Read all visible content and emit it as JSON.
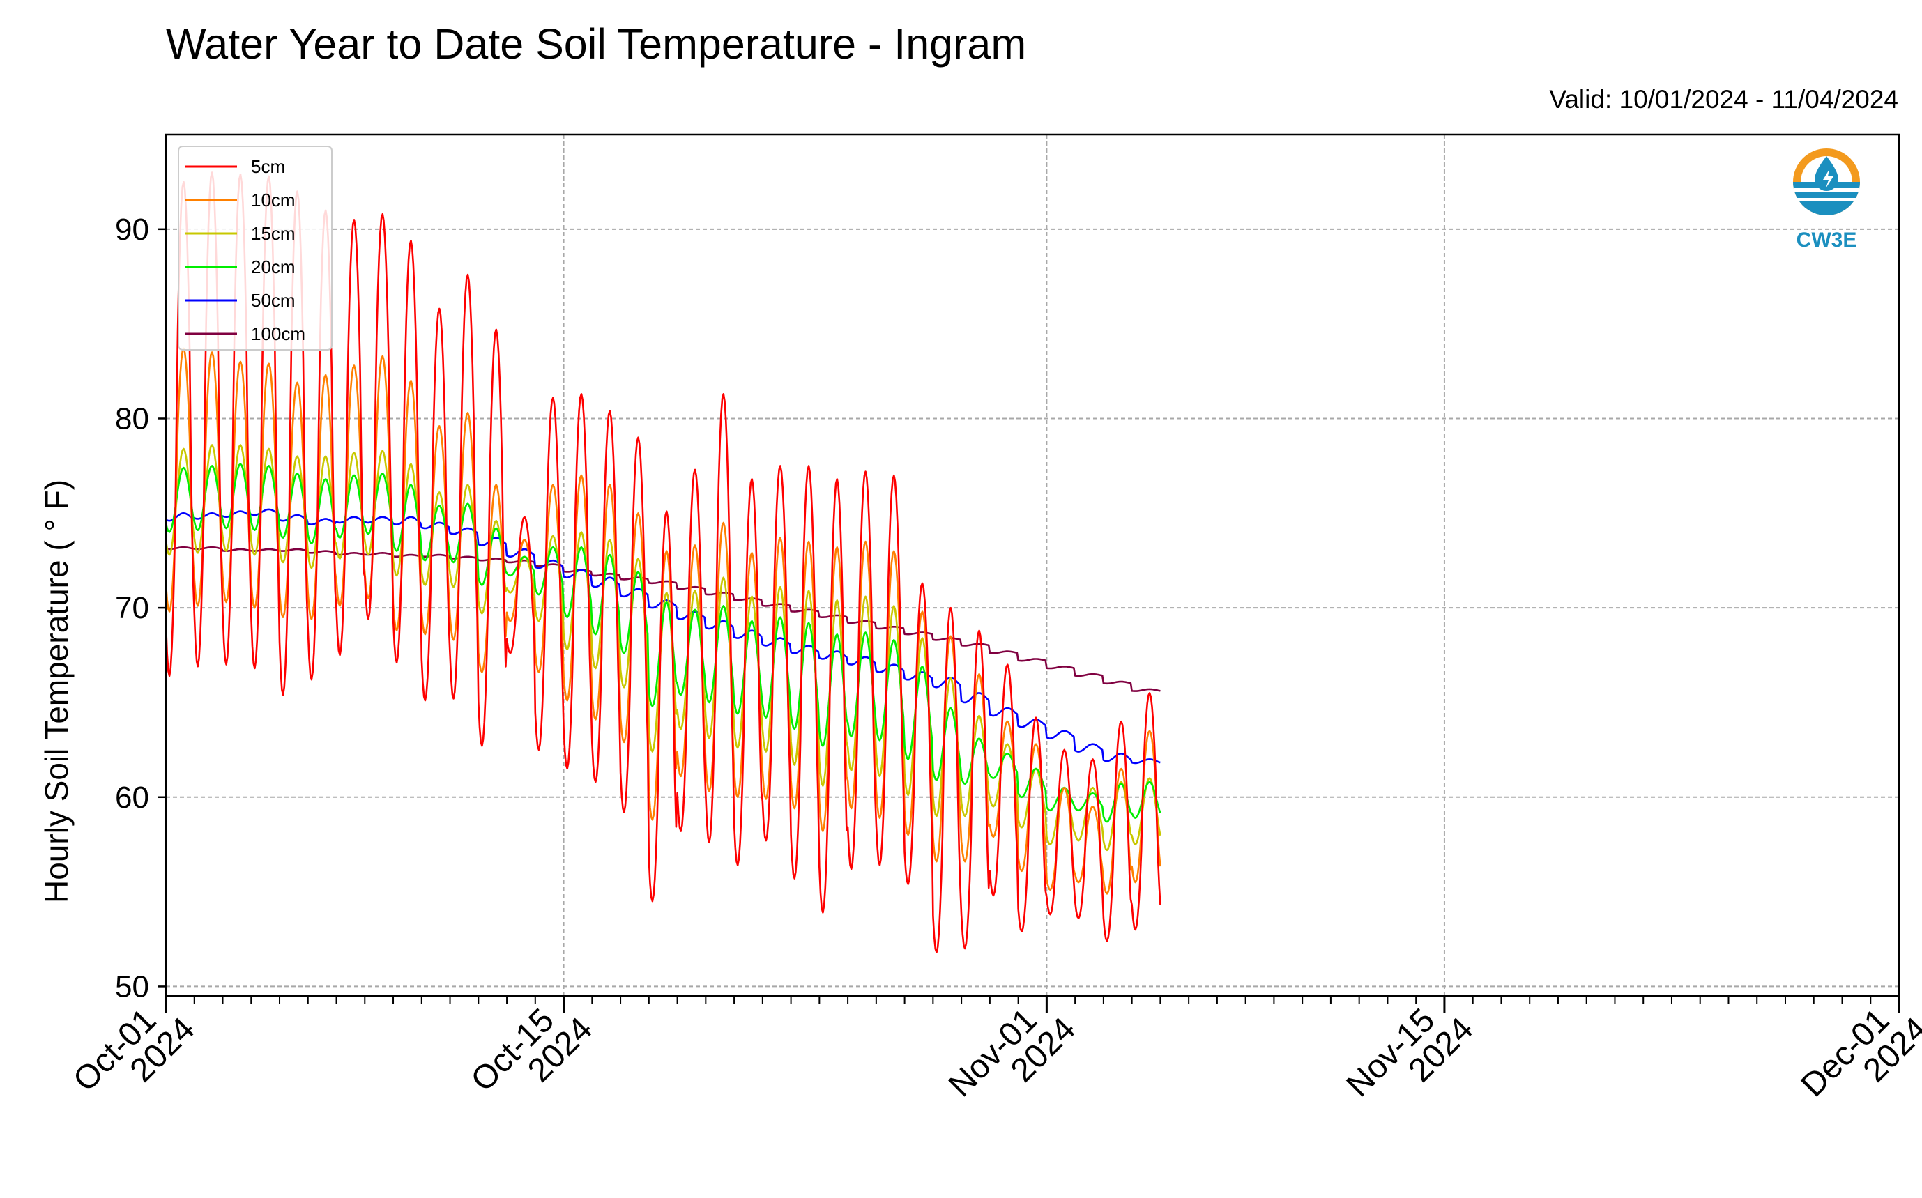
{
  "chart_data": {
    "type": "line",
    "title": "Water Year to Date Soil Temperature - Ingram",
    "subtitle": "Valid: 10/01/2024 - 11/04/2024",
    "ylabel": "Hourly Soil Temperature ( ° F)",
    "xlabel": "",
    "ylim": [
      49.5,
      95
    ],
    "xlim": [
      "2024-10-01",
      "2024-12-01"
    ],
    "yticks": [
      50,
      60,
      70,
      80,
      90
    ],
    "xticks": [
      {
        "date": "2024-10-01",
        "label_line1": "Oct-01",
        "label_line2": "2024"
      },
      {
        "date": "2024-10-15",
        "label_line1": "Oct-15",
        "label_line2": "2024"
      },
      {
        "date": "2024-11-01",
        "label_line1": "Nov-01",
        "label_line2": "2024"
      },
      {
        "date": "2024-11-15",
        "label_line1": "Nov-15",
        "label_line2": "2024"
      },
      {
        "date": "2024-12-01",
        "label_line1": "Dec-01",
        "label_line2": "2024"
      }
    ],
    "grid": true,
    "legend_position": "top-left",
    "series": [
      {
        "name": "5cm",
        "color": "#ff0000",
        "daily_max": [
          92.5,
          93.0,
          92.9,
          92.8,
          92.0,
          91.0,
          90.5,
          90.8,
          89.4,
          85.8,
          87.6,
          84.7,
          74.8,
          81.1,
          81.3,
          80.4,
          79.0,
          75.1,
          77.3,
          81.3,
          76.8,
          77.5,
          77.5,
          76.8,
          77.2,
          77.0,
          71.3,
          70.0,
          68.8,
          67.0,
          64.2,
          62.5,
          62.0,
          64.0,
          65.5
        ],
        "daily_min": [
          66.4,
          66.9,
          67.0,
          66.8,
          65.4,
          66.2,
          67.5,
          69.4,
          67.1,
          65.1,
          65.2,
          62.7,
          67.6,
          62.5,
          61.5,
          60.8,
          59.2,
          54.5,
          58.2,
          57.6,
          56.4,
          57.7,
          55.7,
          53.9,
          56.2,
          56.4,
          55.4,
          51.8,
          52.0,
          54.8,
          52.9,
          53.8,
          53.6,
          52.4,
          53.0
        ]
      },
      {
        "name": "10cm",
        "color": "#ff8000",
        "daily_max": [
          83.7,
          83.5,
          83.0,
          82.9,
          81.9,
          82.3,
          82.8,
          83.3,
          82.0,
          79.6,
          80.3,
          76.5,
          73.6,
          76.5,
          77.0,
          76.5,
          75.0,
          73.0,
          73.3,
          74.5,
          72.9,
          73.7,
          73.5,
          73.2,
          73.5,
          73.0,
          69.8,
          68.5,
          66.5,
          64.0,
          62.8,
          60.5,
          59.5,
          61.5,
          63.5
        ],
        "daily_min": [
          69.8,
          70.1,
          70.3,
          70.0,
          69.5,
          69.4,
          70.1,
          70.5,
          68.8,
          68.6,
          68.3,
          66.6,
          69.3,
          66.6,
          65.1,
          64.1,
          62.9,
          58.8,
          61.1,
          60.3,
          60.0,
          59.9,
          59.4,
          58.2,
          59.4,
          58.9,
          58.0,
          56.6,
          56.6,
          57.9,
          56.1,
          55.1,
          55.5,
          54.9,
          55.5
        ]
      },
      {
        "name": "15cm",
        "color": "#c8c800",
        "daily_max": [
          78.4,
          78.6,
          78.6,
          78.4,
          78.0,
          78.0,
          78.2,
          78.3,
          77.6,
          76.1,
          76.5,
          74.6,
          72.7,
          73.8,
          74.0,
          73.6,
          72.6,
          70.8,
          70.9,
          71.6,
          70.6,
          71.1,
          70.9,
          70.4,
          70.6,
          70.1,
          68.4,
          66.3,
          64.3,
          62.8,
          61.5,
          60.5,
          60.5,
          60.8,
          61.0
        ],
        "daily_min": [
          72.8,
          72.9,
          73.0,
          72.8,
          72.4,
          72.1,
          72.6,
          72.8,
          71.7,
          71.2,
          71.1,
          69.7,
          70.8,
          69.3,
          67.8,
          66.8,
          65.8,
          62.4,
          63.6,
          63.1,
          62.6,
          62.4,
          61.7,
          60.6,
          61.4,
          61.1,
          60.1,
          59.0,
          59.0,
          59.5,
          58.4,
          57.5,
          57.7,
          57.2,
          57.5
        ]
      },
      {
        "name": "20cm",
        "color": "#00ee00",
        "daily_max": [
          77.4,
          77.5,
          77.6,
          77.5,
          77.1,
          76.8,
          77.0,
          77.1,
          76.5,
          75.4,
          75.5,
          74.2,
          72.7,
          73.2,
          73.2,
          72.8,
          71.9,
          70.3,
          69.9,
          70.1,
          69.3,
          69.5,
          69.2,
          68.6,
          68.7,
          68.3,
          66.9,
          64.7,
          63.1,
          62.3,
          61.5,
          60.5,
          60.2,
          60.7,
          60.8
        ],
        "daily_min": [
          74.0,
          74.1,
          74.2,
          74.1,
          73.7,
          73.4,
          73.7,
          73.9,
          73.0,
          72.5,
          72.4,
          71.2,
          71.7,
          70.7,
          69.5,
          68.6,
          67.6,
          64.8,
          65.4,
          65.0,
          64.4,
          64.2,
          63.6,
          62.7,
          63.2,
          63.0,
          62.0,
          60.9,
          60.7,
          61.0,
          60.0,
          59.3,
          59.3,
          58.7,
          58.9
        ]
      },
      {
        "name": "50cm",
        "color": "#0000ff",
        "daily_max": [
          75.0,
          75.0,
          75.1,
          75.2,
          74.9,
          74.7,
          74.8,
          74.8,
          74.8,
          74.5,
          74.2,
          73.7,
          73.1,
          72.5,
          72.0,
          71.6,
          71.0,
          70.4,
          69.8,
          69.3,
          68.8,
          68.4,
          68.0,
          67.7,
          67.4,
          67.0,
          66.6,
          66.3,
          65.5,
          64.7,
          64.1,
          63.5,
          62.8,
          62.3,
          62.0
        ],
        "daily_min": [
          74.6,
          74.7,
          74.8,
          74.9,
          74.6,
          74.4,
          74.5,
          74.5,
          74.4,
          74.2,
          73.9,
          73.3,
          72.7,
          72.1,
          71.6,
          71.1,
          70.6,
          70.0,
          69.4,
          68.9,
          68.4,
          68.0,
          67.6,
          67.3,
          67.0,
          66.6,
          66.2,
          65.8,
          65.0,
          64.3,
          63.7,
          63.1,
          62.4,
          61.9,
          61.8
        ]
      },
      {
        "name": "100cm",
        "color": "#800040",
        "daily_max": [
          73.2,
          73.2,
          73.1,
          73.1,
          73.1,
          73.0,
          72.9,
          72.9,
          72.8,
          72.8,
          72.7,
          72.6,
          72.5,
          72.3,
          72.0,
          71.8,
          71.6,
          71.4,
          71.1,
          70.8,
          70.5,
          70.2,
          69.9,
          69.6,
          69.3,
          69.0,
          68.7,
          68.4,
          68.1,
          67.7,
          67.3,
          66.9,
          66.5,
          66.1,
          65.7
        ],
        "daily_min": [
          73.1,
          73.1,
          73.0,
          73.0,
          73.0,
          72.9,
          72.8,
          72.8,
          72.7,
          72.7,
          72.6,
          72.5,
          72.4,
          72.2,
          71.9,
          71.7,
          71.5,
          71.3,
          71.0,
          70.7,
          70.4,
          70.1,
          69.8,
          69.5,
          69.2,
          68.9,
          68.6,
          68.3,
          68.0,
          67.6,
          67.2,
          66.8,
          66.4,
          66.0,
          65.6
        ]
      }
    ]
  },
  "logo": {
    "text": "CW3E",
    "color": "#1b8fbf",
    "accent": "#f39a1e"
  }
}
